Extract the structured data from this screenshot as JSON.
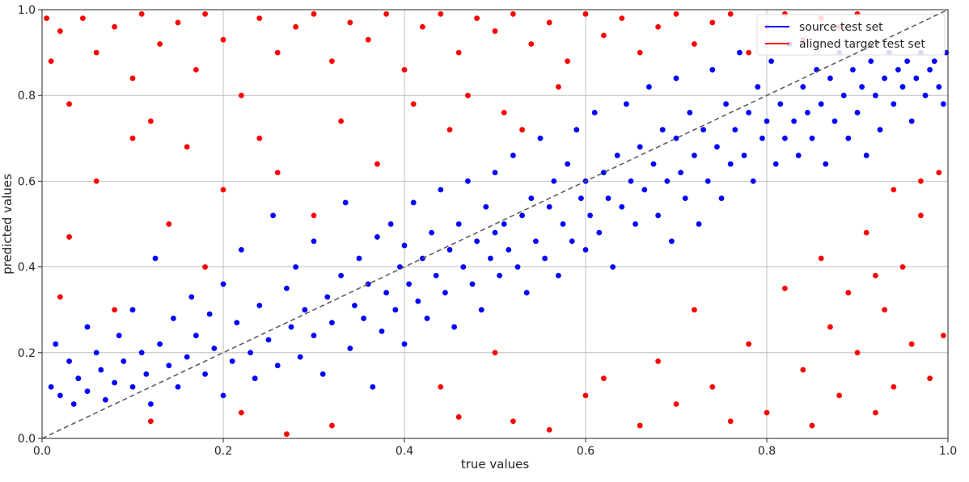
{
  "chart_data": {
    "type": "scatter",
    "title": "",
    "xlabel": "true values",
    "ylabel": "predicted values",
    "xlim": [
      0.0,
      1.0
    ],
    "ylim": [
      0.0,
      1.0
    ],
    "x_ticks": [
      "0.0",
      "0.2",
      "0.4",
      "0.6",
      "0.8",
      "1.0"
    ],
    "y_ticks": [
      "0.0",
      "0.2",
      "0.4",
      "0.6",
      "0.8",
      "1.0"
    ],
    "grid": true,
    "legend_position": "top-right",
    "reference_line": {
      "from": [
        0,
        0
      ],
      "to": [
        1,
        1
      ],
      "style": "dashed",
      "color": "#555555"
    },
    "series": [
      {
        "name": "source test set",
        "color": "#0000ff",
        "points": [
          [
            0.01,
            0.12
          ],
          [
            0.015,
            0.22
          ],
          [
            0.02,
            0.1
          ],
          [
            0.03,
            0.18
          ],
          [
            0.035,
            0.08
          ],
          [
            0.04,
            0.14
          ],
          [
            0.05,
            0.26
          ],
          [
            0.05,
            0.11
          ],
          [
            0.06,
            0.2
          ],
          [
            0.065,
            0.16
          ],
          [
            0.07,
            0.09
          ],
          [
            0.08,
            0.13
          ],
          [
            0.085,
            0.24
          ],
          [
            0.09,
            0.18
          ],
          [
            0.1,
            0.12
          ],
          [
            0.1,
            0.3
          ],
          [
            0.11,
            0.2
          ],
          [
            0.115,
            0.15
          ],
          [
            0.12,
            0.08
          ],
          [
            0.125,
            0.42
          ],
          [
            0.13,
            0.22
          ],
          [
            0.14,
            0.17
          ],
          [
            0.145,
            0.28
          ],
          [
            0.15,
            0.12
          ],
          [
            0.16,
            0.19
          ],
          [
            0.165,
            0.33
          ],
          [
            0.17,
            0.24
          ],
          [
            0.18,
            0.15
          ],
          [
            0.185,
            0.29
          ],
          [
            0.19,
            0.21
          ],
          [
            0.2,
            0.1
          ],
          [
            0.2,
            0.36
          ],
          [
            0.21,
            0.18
          ],
          [
            0.215,
            0.27
          ],
          [
            0.22,
            0.44
          ],
          [
            0.23,
            0.2
          ],
          [
            0.235,
            0.14
          ],
          [
            0.24,
            0.31
          ],
          [
            0.25,
            0.23
          ],
          [
            0.255,
            0.52
          ],
          [
            0.26,
            0.17
          ],
          [
            0.27,
            0.35
          ],
          [
            0.275,
            0.26
          ],
          [
            0.28,
            0.4
          ],
          [
            0.285,
            0.19
          ],
          [
            0.29,
            0.3
          ],
          [
            0.3,
            0.24
          ],
          [
            0.3,
            0.46
          ],
          [
            0.31,
            0.15
          ],
          [
            0.315,
            0.33
          ],
          [
            0.32,
            0.27
          ],
          [
            0.33,
            0.38
          ],
          [
            0.335,
            0.55
          ],
          [
            0.34,
            0.21
          ],
          [
            0.345,
            0.31
          ],
          [
            0.35,
            0.42
          ],
          [
            0.355,
            0.28
          ],
          [
            0.36,
            0.36
          ],
          [
            0.365,
            0.12
          ],
          [
            0.37,
            0.47
          ],
          [
            0.375,
            0.25
          ],
          [
            0.38,
            0.34
          ],
          [
            0.385,
            0.5
          ],
          [
            0.39,
            0.3
          ],
          [
            0.395,
            0.4
          ],
          [
            0.4,
            0.22
          ],
          [
            0.4,
            0.45
          ],
          [
            0.405,
            0.36
          ],
          [
            0.41,
            0.55
          ],
          [
            0.415,
            0.32
          ],
          [
            0.42,
            0.42
          ],
          [
            0.425,
            0.28
          ],
          [
            0.43,
            0.48
          ],
          [
            0.435,
            0.38
          ],
          [
            0.44,
            0.58
          ],
          [
            0.445,
            0.34
          ],
          [
            0.45,
            0.44
          ],
          [
            0.455,
            0.26
          ],
          [
            0.46,
            0.5
          ],
          [
            0.465,
            0.4
          ],
          [
            0.47,
            0.6
          ],
          [
            0.475,
            0.36
          ],
          [
            0.48,
            0.46
          ],
          [
            0.485,
            0.3
          ],
          [
            0.49,
            0.54
          ],
          [
            0.495,
            0.42
          ],
          [
            0.5,
            0.48
          ],
          [
            0.5,
            0.62
          ],
          [
            0.505,
            0.38
          ],
          [
            0.51,
            0.5
          ],
          [
            0.515,
            0.44
          ],
          [
            0.52,
            0.66
          ],
          [
            0.525,
            0.4
          ],
          [
            0.53,
            0.52
          ],
          [
            0.535,
            0.34
          ],
          [
            0.54,
            0.56
          ],
          [
            0.545,
            0.46
          ],
          [
            0.55,
            0.7
          ],
          [
            0.555,
            0.42
          ],
          [
            0.56,
            0.54
          ],
          [
            0.565,
            0.6
          ],
          [
            0.57,
            0.38
          ],
          [
            0.575,
            0.5
          ],
          [
            0.58,
            0.64
          ],
          [
            0.585,
            0.46
          ],
          [
            0.59,
            0.72
          ],
          [
            0.595,
            0.56
          ],
          [
            0.6,
            0.44
          ],
          [
            0.6,
            0.6
          ],
          [
            0.605,
            0.52
          ],
          [
            0.61,
            0.76
          ],
          [
            0.615,
            0.48
          ],
          [
            0.62,
            0.62
          ],
          [
            0.625,
            0.56
          ],
          [
            0.63,
            0.4
          ],
          [
            0.635,
            0.66
          ],
          [
            0.64,
            0.54
          ],
          [
            0.645,
            0.78
          ],
          [
            0.65,
            0.6
          ],
          [
            0.655,
            0.5
          ],
          [
            0.66,
            0.68
          ],
          [
            0.665,
            0.58
          ],
          [
            0.67,
            0.82
          ],
          [
            0.675,
            0.64
          ],
          [
            0.68,
            0.52
          ],
          [
            0.685,
            0.72
          ],
          [
            0.69,
            0.6
          ],
          [
            0.695,
            0.46
          ],
          [
            0.7,
            0.7
          ],
          [
            0.7,
            0.84
          ],
          [
            0.705,
            0.62
          ],
          [
            0.71,
            0.56
          ],
          [
            0.715,
            0.76
          ],
          [
            0.72,
            0.66
          ],
          [
            0.725,
            0.5
          ],
          [
            0.73,
            0.72
          ],
          [
            0.735,
            0.6
          ],
          [
            0.74,
            0.86
          ],
          [
            0.745,
            0.68
          ],
          [
            0.75,
            0.56
          ],
          [
            0.755,
            0.78
          ],
          [
            0.76,
            0.64
          ],
          [
            0.765,
            0.72
          ],
          [
            0.77,
            0.9
          ],
          [
            0.775,
            0.66
          ],
          [
            0.78,
            0.76
          ],
          [
            0.785,
            0.6
          ],
          [
            0.79,
            0.82
          ],
          [
            0.795,
            0.7
          ],
          [
            0.8,
            0.74
          ],
          [
            0.805,
            0.88
          ],
          [
            0.81,
            0.64
          ],
          [
            0.815,
            0.78
          ],
          [
            0.82,
            0.7
          ],
          [
            0.825,
            0.92
          ],
          [
            0.83,
            0.74
          ],
          [
            0.835,
            0.66
          ],
          [
            0.84,
            0.82
          ],
          [
            0.845,
            0.76
          ],
          [
            0.85,
            0.7
          ],
          [
            0.855,
            0.86
          ],
          [
            0.86,
            0.78
          ],
          [
            0.865,
            0.64
          ],
          [
            0.87,
            0.84
          ],
          [
            0.875,
            0.74
          ],
          [
            0.88,
            0.9
          ],
          [
            0.885,
            0.8
          ],
          [
            0.89,
            0.7
          ],
          [
            0.895,
            0.86
          ],
          [
            0.9,
            0.76
          ],
          [
            0.905,
            0.82
          ],
          [
            0.91,
            0.66
          ],
          [
            0.915,
            0.88
          ],
          [
            0.92,
            0.8
          ],
          [
            0.925,
            0.72
          ],
          [
            0.93,
            0.84
          ],
          [
            0.935,
            0.9
          ],
          [
            0.94,
            0.78
          ],
          [
            0.945,
            0.86
          ],
          [
            0.95,
            0.82
          ],
          [
            0.955,
            0.88
          ],
          [
            0.96,
            0.74
          ],
          [
            0.965,
            0.84
          ],
          [
            0.97,
            0.9
          ],
          [
            0.975,
            0.8
          ],
          [
            0.98,
            0.86
          ],
          [
            0.985,
            0.88
          ],
          [
            0.99,
            0.82
          ],
          [
            0.995,
            0.78
          ],
          [
            0.998,
            0.9
          ]
        ]
      },
      {
        "name": "aligned target test set",
        "color": "#ff0000",
        "points": [
          [
            0.005,
            0.98
          ],
          [
            0.01,
            0.88
          ],
          [
            0.02,
            0.95
          ],
          [
            0.03,
            0.78
          ],
          [
            0.045,
            0.98
          ],
          [
            0.06,
            0.9
          ],
          [
            0.08,
            0.96
          ],
          [
            0.1,
            0.84
          ],
          [
            0.11,
            0.99
          ],
          [
            0.12,
            0.74
          ],
          [
            0.13,
            0.92
          ],
          [
            0.15,
            0.97
          ],
          [
            0.17,
            0.86
          ],
          [
            0.18,
            0.99
          ],
          [
            0.2,
            0.93
          ],
          [
            0.22,
            0.8
          ],
          [
            0.24,
            0.98
          ],
          [
            0.26,
            0.9
          ],
          [
            0.28,
            0.96
          ],
          [
            0.3,
            0.99
          ],
          [
            0.32,
            0.88
          ],
          [
            0.34,
            0.97
          ],
          [
            0.36,
            0.93
          ],
          [
            0.38,
            0.99
          ],
          [
            0.4,
            0.86
          ],
          [
            0.42,
            0.96
          ],
          [
            0.44,
            0.99
          ],
          [
            0.46,
            0.9
          ],
          [
            0.48,
            0.98
          ],
          [
            0.5,
            0.95
          ],
          [
            0.52,
            0.99
          ],
          [
            0.54,
            0.92
          ],
          [
            0.56,
            0.97
          ],
          [
            0.58,
            0.88
          ],
          [
            0.6,
            0.99
          ],
          [
            0.62,
            0.94
          ],
          [
            0.64,
            0.98
          ],
          [
            0.66,
            0.9
          ],
          [
            0.68,
            0.96
          ],
          [
            0.7,
            0.99
          ],
          [
            0.72,
            0.92
          ],
          [
            0.74,
            0.97
          ],
          [
            0.76,
            0.99
          ],
          [
            0.78,
            0.9
          ],
          [
            0.8,
            0.96
          ],
          [
            0.82,
            0.99
          ],
          [
            0.84,
            0.93
          ],
          [
            0.86,
            0.98
          ],
          [
            0.88,
            0.96
          ],
          [
            0.9,
            0.99
          ],
          [
            0.06,
            0.6
          ],
          [
            0.1,
            0.7
          ],
          [
            0.14,
            0.5
          ],
          [
            0.16,
            0.68
          ],
          [
            0.2,
            0.58
          ],
          [
            0.24,
            0.7
          ],
          [
            0.26,
            0.62
          ],
          [
            0.3,
            0.52
          ],
          [
            0.33,
            0.74
          ],
          [
            0.37,
            0.64
          ],
          [
            0.41,
            0.78
          ],
          [
            0.45,
            0.72
          ],
          [
            0.47,
            0.8
          ],
          [
            0.51,
            0.76
          ],
          [
            0.53,
            0.72
          ],
          [
            0.57,
            0.82
          ],
          [
            0.03,
            0.47
          ],
          [
            0.02,
            0.33
          ],
          [
            0.08,
            0.3
          ],
          [
            0.12,
            0.04
          ],
          [
            0.18,
            0.4
          ],
          [
            0.22,
            0.06
          ],
          [
            0.27,
            0.01
          ],
          [
            0.32,
            0.03
          ],
          [
            0.44,
            0.12
          ],
          [
            0.46,
            0.05
          ],
          [
            0.5,
            0.2
          ],
          [
            0.52,
            0.04
          ],
          [
            0.56,
            0.02
          ],
          [
            0.6,
            0.1
          ],
          [
            0.62,
            0.14
          ],
          [
            0.66,
            0.03
          ],
          [
            0.68,
            0.18
          ],
          [
            0.7,
            0.08
          ],
          [
            0.72,
            0.3
          ],
          [
            0.74,
            0.12
          ],
          [
            0.76,
            0.04
          ],
          [
            0.78,
            0.22
          ],
          [
            0.8,
            0.06
          ],
          [
            0.82,
            0.35
          ],
          [
            0.84,
            0.16
          ],
          [
            0.85,
            0.03
          ],
          [
            0.86,
            0.42
          ],
          [
            0.87,
            0.26
          ],
          [
            0.88,
            0.1
          ],
          [
            0.89,
            0.34
          ],
          [
            0.9,
            0.2
          ],
          [
            0.91,
            0.48
          ],
          [
            0.92,
            0.06
          ],
          [
            0.93,
            0.3
          ],
          [
            0.94,
            0.12
          ],
          [
            0.95,
            0.4
          ],
          [
            0.96,
            0.22
          ],
          [
            0.97,
            0.52
          ],
          [
            0.98,
            0.14
          ],
          [
            0.99,
            0.62
          ],
          [
            0.995,
            0.24
          ],
          [
            0.97,
            0.6
          ],
          [
            0.94,
            0.58
          ],
          [
            0.92,
            0.38
          ]
        ]
      }
    ]
  }
}
